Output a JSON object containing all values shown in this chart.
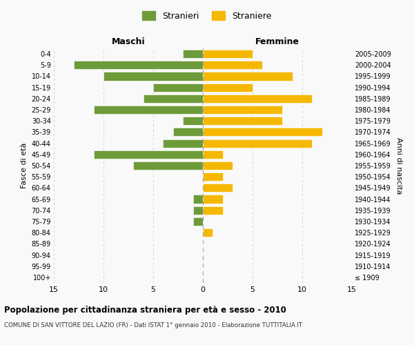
{
  "age_groups": [
    "100+",
    "95-99",
    "90-94",
    "85-89",
    "80-84",
    "75-79",
    "70-74",
    "65-69",
    "60-64",
    "55-59",
    "50-54",
    "45-49",
    "40-44",
    "35-39",
    "30-34",
    "25-29",
    "20-24",
    "15-19",
    "10-14",
    "5-9",
    "0-4"
  ],
  "birth_years": [
    "≤ 1909",
    "1910-1914",
    "1915-1919",
    "1920-1924",
    "1925-1929",
    "1930-1934",
    "1935-1939",
    "1940-1944",
    "1945-1949",
    "1950-1954",
    "1955-1959",
    "1960-1964",
    "1965-1969",
    "1970-1974",
    "1975-1979",
    "1980-1984",
    "1985-1989",
    "1990-1994",
    "1995-1999",
    "2000-2004",
    "2005-2009"
  ],
  "maschi": [
    0,
    0,
    0,
    0,
    0,
    1,
    1,
    1,
    0,
    0,
    7,
    11,
    4,
    3,
    2,
    11,
    6,
    5,
    10,
    13,
    2
  ],
  "femmine": [
    0,
    0,
    0,
    0,
    1,
    0,
    2,
    2,
    3,
    2,
    3,
    2,
    11,
    12,
    8,
    8,
    11,
    5,
    9,
    6,
    5
  ],
  "color_maschi": "#6d9b3a",
  "color_femmine": "#f5b800",
  "title": "Popolazione per cittadinanza straniera per età e sesso - 2010",
  "subtitle": "COMUNE DI SAN VITTORE DEL LAZIO (FR) - Dati ISTAT 1° gennaio 2010 - Elaborazione TUTTITALIA.IT",
  "xlabel_left": "Maschi",
  "xlabel_right": "Femmine",
  "ylabel_left": "Fasce di età",
  "ylabel_right": "Anni di nascita",
  "legend_maschi": "Stranieri",
  "legend_femmine": "Straniere",
  "xlim": 15,
  "bg_color": "#f9f9f9",
  "grid_color": "#cccccc"
}
